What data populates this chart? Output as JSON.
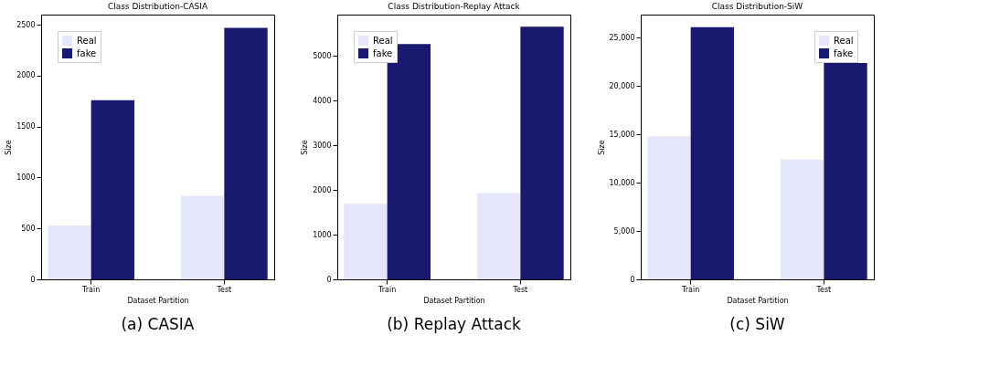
{
  "chart_data": [
    {
      "type": "bar",
      "title": "Class Distribution-CASIA",
      "xlabel": "Dataset Partition",
      "ylabel": "Size",
      "categories": [
        "Train",
        "Test"
      ],
      "series": [
        {
          "name": "Real",
          "color": "#e6e6fa",
          "values": [
            530,
            820
          ]
        },
        {
          "name": "fake",
          "color": "#191970",
          "values": [
            1760,
            2470
          ]
        }
      ],
      "ylim": [
        0,
        2600
      ],
      "yticks": [
        0,
        500,
        1000,
        1500,
        2000,
        2500
      ],
      "grid": false,
      "legend": "top left",
      "annotations": [
        "(a) CASIA"
      ]
    },
    {
      "type": "bar",
      "title": "Class Distribution-Replay Attack",
      "xlabel": "Dataset Partition",
      "ylabel": "Size",
      "categories": [
        "Train",
        "Test"
      ],
      "series": [
        {
          "name": "Real",
          "color": "#e6e6fa",
          "values": [
            1690,
            1930
          ]
        },
        {
          "name": "fake",
          "color": "#191970",
          "values": [
            5260,
            5650
          ]
        }
      ],
      "ylim": [
        0,
        5920
      ],
      "yticks": [
        0,
        1000,
        2000,
        3000,
        4000,
        5000
      ],
      "grid": false,
      "legend": "top left",
      "annotations": [
        "(b) Replay Attack"
      ]
    },
    {
      "type": "bar",
      "title": "Class Distribution-SiW",
      "xlabel": "Dataset Partition",
      "ylabel": "Size",
      "categories": [
        "Train",
        "Test"
      ],
      "series": [
        {
          "name": "Real",
          "color": "#e6e6fa",
          "values": [
            14800,
            12400
          ]
        },
        {
          "name": "fake",
          "color": "#191970",
          "values": [
            26100,
            22400
          ]
        }
      ],
      "ylim": [
        0,
        27400
      ],
      "yticks": [
        0,
        {
          "value": 5000,
          "label": "5,000"
        },
        {
          "value": 10000,
          "label": "10,000"
        },
        {
          "value": 15000,
          "label": "15,000"
        },
        {
          "value": 20000,
          "label": "20,000"
        },
        {
          "value": 25000,
          "label": "25,000"
        }
      ],
      "grid": false,
      "legend": "top right",
      "annotations": [
        "(c) SiW"
      ]
    }
  ]
}
